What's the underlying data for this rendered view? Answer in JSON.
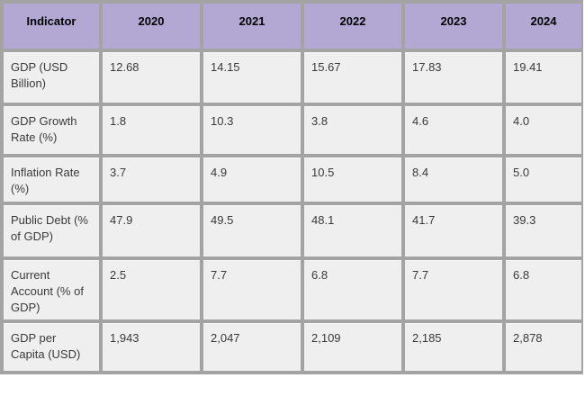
{
  "colors": {
    "page_bg": "#ffffff",
    "grid": "#a3a3a3",
    "header_bg": "#b3a8d4",
    "header_text": "#000000",
    "cell_bg": "#f0efef",
    "cell_text": "#3a3a3a"
  },
  "table": {
    "columns": [
      "Indicator",
      "2020",
      "2021",
      "2022",
      "2023",
      "2024"
    ],
    "rows": [
      {
        "indicator": "GDP (USD Billion)",
        "values": [
          "12.68",
          "14.15",
          "15.67",
          "17.83",
          "19.41"
        ]
      },
      {
        "indicator": "GDP Growth Rate (%)",
        "values": [
          "1.8",
          "10.3",
          "3.8",
          "4.6",
          "4.0"
        ]
      },
      {
        "indicator": "Inflation Rate (%)",
        "values": [
          "3.7",
          "4.9",
          "10.5",
          "8.4",
          "5.0"
        ]
      },
      {
        "indicator": "Public Debt (% of GDP)",
        "values": [
          "47.9",
          "49.5",
          "48.1",
          "41.7",
          "39.3"
        ]
      },
      {
        "indicator": "Current Account (% of GDP)",
        "values": [
          "2.5",
          "7.7",
          "6.8",
          "7.7",
          "6.8"
        ]
      },
      {
        "indicator": "GDP per Capita (USD)",
        "values": [
          "1,943",
          "2,047",
          "2,109",
          "2,185",
          "2,878"
        ]
      }
    ]
  },
  "chart_data": {
    "type": "table",
    "title": "",
    "categories": [
      "2020",
      "2021",
      "2022",
      "2023",
      "2024"
    ],
    "row_header": "Indicator",
    "series": [
      {
        "name": "GDP (USD Billion)",
        "values": [
          12.68,
          14.15,
          15.67,
          17.83,
          19.41
        ]
      },
      {
        "name": "GDP Growth Rate (%)",
        "values": [
          1.8,
          10.3,
          3.8,
          4.6,
          4.0
        ]
      },
      {
        "name": "Inflation Rate (%)",
        "values": [
          3.7,
          4.9,
          10.5,
          8.4,
          5.0
        ]
      },
      {
        "name": "Public Debt (% of GDP)",
        "values": [
          47.9,
          49.5,
          48.1,
          41.7,
          39.3
        ]
      },
      {
        "name": "Current Account (% of GDP)",
        "values": [
          2.5,
          7.7,
          6.8,
          7.7,
          6.8
        ]
      },
      {
        "name": "GDP per Capita (USD)",
        "values": [
          1943,
          2047,
          2109,
          2185,
          2878
        ]
      }
    ]
  }
}
